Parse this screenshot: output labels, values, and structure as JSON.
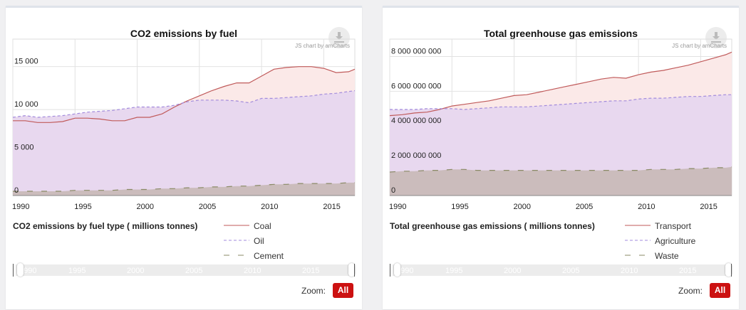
{
  "chart_data": [
    {
      "type": "area",
      "title": "CO2 emissions by fuel",
      "credit": "JS chart by amCharts",
      "subtitle": "CO2 emissions by fuel type ( millions tonnes)",
      "xlim": [
        1990,
        2017.5
      ],
      "ylim": [
        0,
        18200
      ],
      "x_ticks": [
        1990,
        1995,
        2000,
        2005,
        2010,
        2015
      ],
      "y_ticks": [
        0,
        5000,
        10000,
        15000
      ],
      "y_tick_labels": [
        "0",
        "5 000",
        "10 000",
        "15 000"
      ],
      "x": [
        1990,
        1991,
        1992,
        1993,
        1994,
        1995,
        1996,
        1997,
        1998,
        1999,
        2000,
        2001,
        2002,
        2003,
        2004,
        2005,
        2006,
        2007,
        2008,
        2009,
        2010,
        2011,
        2012,
        2013,
        2014,
        2015,
        2016,
        2017,
        2017.5
      ],
      "legend_placement": "bottom-right",
      "series": [
        {
          "name": "Coal",
          "color": "#c05a5a",
          "fill": "#fbe9e8",
          "dash": "solid",
          "values": [
            8700,
            8700,
            8500,
            8500,
            8600,
            9000,
            9000,
            8900,
            8700,
            8700,
            9100,
            9100,
            9500,
            10300,
            11000,
            11600,
            12200,
            12700,
            13100,
            13100,
            13900,
            14700,
            14900,
            15000,
            15000,
            14800,
            14300,
            14400,
            14700
          ]
        },
        {
          "name": "Oil",
          "color": "#a28bdc",
          "fill": "#e8d8ef",
          "dash": "dashed",
          "values": [
            9100,
            9300,
            9100,
            9200,
            9300,
            9500,
            9700,
            9800,
            9900,
            10100,
            10300,
            10300,
            10300,
            10500,
            10900,
            11100,
            11100,
            11100,
            11000,
            10800,
            11300,
            11300,
            11400,
            11500,
            11600,
            11800,
            11900,
            12100,
            12200
          ]
        },
        {
          "name": "Cement",
          "color": "#8a8a66",
          "fill": "#cbbcbc",
          "dash": "longdash",
          "values": [
            500,
            500,
            500,
            500,
            500,
            600,
            600,
            600,
            600,
            700,
            700,
            700,
            800,
            800,
            900,
            900,
            1000,
            1000,
            1100,
            1100,
            1200,
            1300,
            1300,
            1400,
            1400,
            1400,
            1400,
            1500,
            1500
          ]
        }
      ]
    },
    {
      "type": "area",
      "title": "Total greenhouse gas emissions",
      "credit": "JS chart by amCharts",
      "subtitle": "Total greenhouse gas emissions ( millions tonnes)",
      "xlim": [
        1990,
        2017.5
      ],
      "ylim": [
        0,
        9000000000
      ],
      "x_ticks": [
        1990,
        1995,
        2000,
        2005,
        2010,
        2015
      ],
      "y_ticks": [
        0,
        2000000000,
        4000000000,
        6000000000,
        8000000000
      ],
      "y_tick_labels": [
        "0",
        "2 000 000 000",
        "4 000 000 000",
        "6 000 000 000",
        "8 000 000 000"
      ],
      "x": [
        1990,
        1991,
        1992,
        1993,
        1994,
        1995,
        1996,
        1997,
        1998,
        1999,
        2000,
        2001,
        2002,
        2003,
        2004,
        2005,
        2006,
        2007,
        2008,
        2009,
        2010,
        2011,
        2012,
        2013,
        2014,
        2015,
        2016,
        2017,
        2017.5
      ],
      "legend_placement": "bottom-right",
      "series": [
        {
          "name": "Transport",
          "color": "#c05a5a",
          "fill": "#fbe9e8",
          "dash": "solid",
          "values": [
            4600000000,
            4650000000,
            4750000000,
            4800000000,
            4950000000,
            5150000000,
            5250000000,
            5350000000,
            5450000000,
            5600000000,
            5750000000,
            5800000000,
            5950000000,
            6100000000,
            6250000000,
            6400000000,
            6550000000,
            6700000000,
            6800000000,
            6750000000,
            6950000000,
            7100000000,
            7200000000,
            7350000000,
            7500000000,
            7700000000,
            7900000000,
            8100000000,
            8250000000
          ]
        },
        {
          "name": "Agriculture",
          "color": "#a28bdc",
          "fill": "#e8d8ef",
          "dash": "dashed",
          "values": [
            4950000000,
            4950000000,
            4950000000,
            5000000000,
            5000000000,
            5000000000,
            4950000000,
            5000000000,
            5050000000,
            5100000000,
            5100000000,
            5100000000,
            5150000000,
            5200000000,
            5250000000,
            5300000000,
            5350000000,
            5400000000,
            5450000000,
            5450000000,
            5550000000,
            5600000000,
            5600000000,
            5650000000,
            5700000000,
            5700000000,
            5750000000,
            5800000000,
            5800000000
          ]
        },
        {
          "name": "Waste",
          "color": "#8a8a66",
          "fill": "#cbbcbc",
          "dash": "longdash",
          "values": [
            1350000000,
            1400000000,
            1400000000,
            1450000000,
            1450000000,
            1500000000,
            1500000000,
            1450000000,
            1450000000,
            1450000000,
            1450000000,
            1450000000,
            1450000000,
            1450000000,
            1450000000,
            1450000000,
            1450000000,
            1450000000,
            1450000000,
            1450000000,
            1450000000,
            1500000000,
            1500000000,
            1500000000,
            1550000000,
            1550000000,
            1600000000,
            1600000000,
            1650000000
          ]
        }
      ]
    }
  ],
  "zoom": {
    "label": "Zoom:",
    "button": "All"
  }
}
